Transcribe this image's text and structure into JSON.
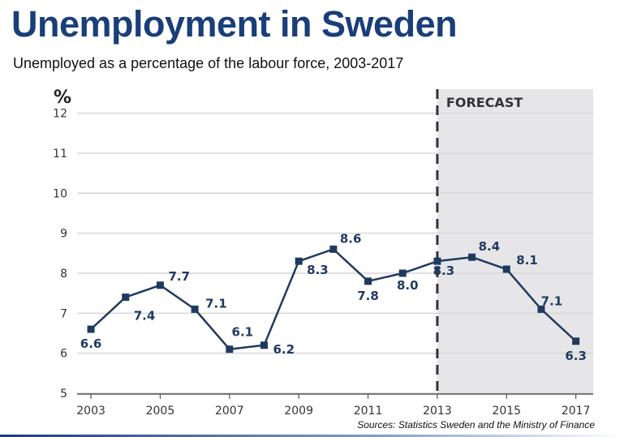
{
  "title": "Unemployment in Sweden",
  "subtitle": "Unemployed as a percentage of the labour force, 2003-2017",
  "source": "Sources: Statistics Sweden and the Ministry of Finance",
  "colors": {
    "title": "#1a3e7a",
    "series": "#1f3a5f",
    "forecast_band": "#e6e6e8",
    "grid": "#d6d6d6"
  },
  "chart_data": {
    "type": "line",
    "ylabel": "%",
    "xlabel": "",
    "x": [
      2003,
      2004,
      2005,
      2006,
      2007,
      2008,
      2009,
      2010,
      2011,
      2012,
      2013,
      2014,
      2015,
      2016,
      2017
    ],
    "xticks": [
      "2003",
      "2005",
      "2007",
      "2009",
      "2011",
      "2013",
      "2015",
      "2017"
    ],
    "yticks": [
      "5",
      "6",
      "7",
      "8",
      "9",
      "10",
      "11",
      "12"
    ],
    "xlim": [
      2002.6,
      2017.5
    ],
    "ylim": [
      5,
      12.6
    ],
    "grid": true,
    "series": [
      {
        "values": [
          6.6,
          7.4,
          7.7,
          7.1,
          6.1,
          6.2,
          8.3,
          8.6,
          7.8,
          8.0,
          8.3,
          8.4,
          8.1,
          7.1,
          6.3
        ],
        "labels": [
          "6.6",
          "7.4",
          "7.7",
          "7.1",
          "6.1",
          "6.2",
          "8.3",
          "8.6",
          "7.8",
          "8.0",
          "8.3",
          "8.4",
          "8.1",
          "7.1",
          "6.3"
        ]
      }
    ],
    "forecast": {
      "label": "FORECAST",
      "from": 2013,
      "to": 2017.5
    }
  }
}
